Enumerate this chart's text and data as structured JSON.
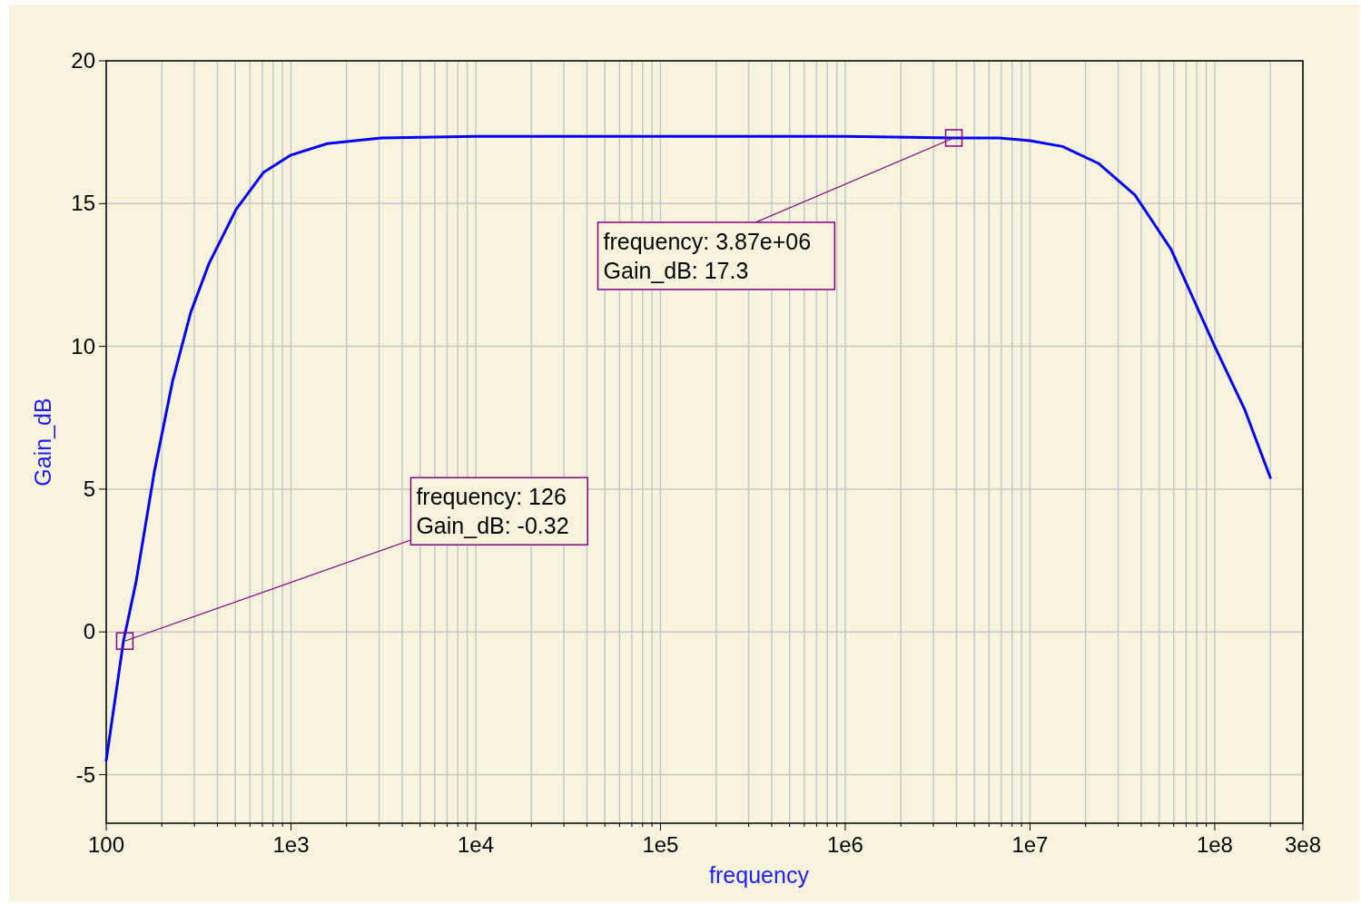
{
  "chart_data": {
    "type": "line",
    "xlabel": "frequency",
    "ylabel": "Gain_dB",
    "log": "x",
    "grid": true,
    "marker": "none",
    "line_style": "solid",
    "xlim": [
      100,
      300000000
    ],
    "ylim": [
      -6.7,
      20
    ],
    "xticks": [
      100,
      {
        "value": 200,
        "label": null
      },
      {
        "value": 300,
        "label": null
      },
      {
        "value": 400,
        "label": null
      },
      {
        "value": 500,
        "label": null
      },
      {
        "value": 600,
        "label": null
      },
      {
        "value": 700,
        "label": null
      },
      {
        "value": 800,
        "label": null
      },
      {
        "value": 900,
        "label": null
      },
      {
        "value": 1000,
        "label": "1e3"
      },
      {
        "value": 2000,
        "label": null
      },
      {
        "value": 3000,
        "label": null
      },
      {
        "value": 4000,
        "label": null
      },
      {
        "value": 5000,
        "label": null
      },
      {
        "value": 6000,
        "label": null
      },
      {
        "value": 7000,
        "label": null
      },
      {
        "value": 8000,
        "label": null
      },
      {
        "value": 9000,
        "label": null
      },
      {
        "value": 10000,
        "label": "1e4"
      },
      {
        "value": 20000,
        "label": null
      },
      {
        "value": 30000,
        "label": null
      },
      {
        "value": 40000,
        "label": null
      },
      {
        "value": 50000,
        "label": null
      },
      {
        "value": 60000,
        "label": null
      },
      {
        "value": 70000,
        "label": null
      },
      {
        "value": 80000,
        "label": null
      },
      {
        "value": 90000,
        "label": null
      },
      {
        "value": 100000,
        "label": "1e5"
      },
      {
        "value": 200000,
        "label": null
      },
      {
        "value": 300000,
        "label": null
      },
      {
        "value": 400000,
        "label": null
      },
      {
        "value": 500000,
        "label": null
      },
      {
        "value": 600000,
        "label": null
      },
      {
        "value": 700000,
        "label": null
      },
      {
        "value": 800000,
        "label": null
      },
      {
        "value": 900000,
        "label": null
      },
      {
        "value": 1000000,
        "label": "1e6"
      },
      {
        "value": 2000000,
        "label": null
      },
      {
        "value": 3000000,
        "label": null
      },
      {
        "value": 4000000,
        "label": null
      },
      {
        "value": 5000000,
        "label": null
      },
      {
        "value": 6000000,
        "label": null
      },
      {
        "value": 7000000,
        "label": null
      },
      {
        "value": 8000000,
        "label": null
      },
      {
        "value": 9000000,
        "label": null
      },
      {
        "value": 10000000,
        "label": "1e7"
      },
      {
        "value": 20000000,
        "label": null
      },
      {
        "value": 30000000,
        "label": null
      },
      {
        "value": 40000000,
        "label": null
      },
      {
        "value": 50000000,
        "label": null
      },
      {
        "value": 60000000,
        "label": null
      },
      {
        "value": 70000000,
        "label": null
      },
      {
        "value": 80000000,
        "label": null
      },
      {
        "value": 90000000,
        "label": null
      },
      {
        "value": 100000000,
        "label": "1e8"
      },
      {
        "value": 200000000,
        "label": null
      },
      {
        "value": 300000000,
        "label": "3e8"
      }
    ],
    "yticks": [
      -5,
      0,
      5,
      10,
      15,
      20
    ],
    "series": [
      {
        "color": "#0000ff",
        "x": [
          100,
          124,
          145,
          182,
          229,
          287,
          360,
          505,
          712,
          1000,
          1570,
          3080,
          10000,
          100000,
          1000000,
          3870000,
          6800000,
          10000000,
          15000000,
          23600000,
          37000000,
          58000000,
          100000000,
          145000000,
          200000000
        ],
        "values": [
          -4.5,
          -0.32,
          1.75,
          5.6,
          8.8,
          11.2,
          12.9,
          14.8,
          16.1,
          16.7,
          17.1,
          17.3,
          17.35,
          17.35,
          17.35,
          17.3,
          17.3,
          17.2,
          17.0,
          16.4,
          15.3,
          13.4,
          10.0,
          7.8,
          5.4
        ]
      }
    ],
    "annotations": [
      {
        "text": "frequency: 126\nGain_dB: -0.32",
        "x": 126,
        "y": -0.32
      },
      {
        "text": "frequency: 3.87e+06\nGain_dB: 17.3",
        "x": 3870000,
        "y": 17.3
      }
    ]
  }
}
